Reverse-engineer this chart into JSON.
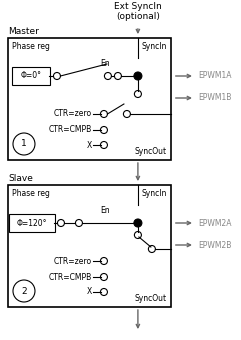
{
  "bg_color": "#ffffff",
  "fig_width": 2.41,
  "fig_height": 3.4,
  "dpi": 100,
  "title_top": "Ext SyncIn\n(optional)",
  "master_label": "Master",
  "slave_label": "Slave",
  "phase_reg_label": "Phase reg",
  "syncin_label": "SyncIn",
  "syncout_label": "SyncOut",
  "en_label": "En",
  "ctr_zero": "CTR=zero",
  "ctr_cmpb": "CTR=CMPB",
  "x_label": "X",
  "phi0_label": "Φ=0°",
  "phi120_label": "Φ=120°",
  "circle_num_1": "1",
  "circle_num_2": "2",
  "epwm1a": "EPWM1A",
  "epwm1b": "EPWM1B",
  "epwm2a": "EPWM2A",
  "epwm2b": "EPWM2B",
  "line_color": "#000000",
  "box_color": "#000000",
  "text_color": "#000000",
  "arrow_color": "#666666",
  "epwm_color": "#888888"
}
